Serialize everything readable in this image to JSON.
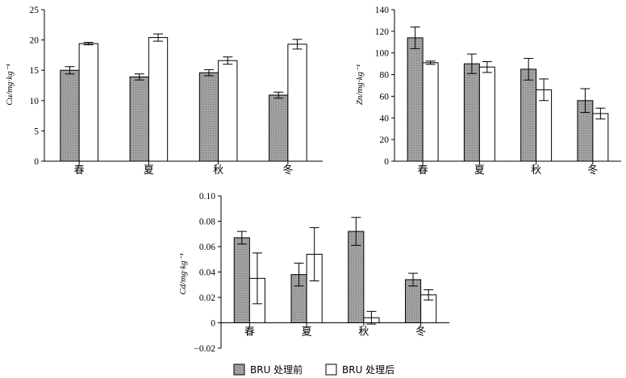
{
  "chart_data": [
    {
      "type": "bar",
      "ylabel": "Cu/mg·kg⁻¹",
      "categories": [
        "春",
        "夏",
        "秋",
        "冬"
      ],
      "ylim": [
        0,
        25
      ],
      "yticks": [
        0,
        5,
        10,
        15,
        20,
        25
      ],
      "series": [
        {
          "name": "BRU 处理前",
          "values": [
            15.0,
            13.9,
            14.6,
            10.9
          ],
          "errors": [
            0.6,
            0.5,
            0.5,
            0.5
          ]
        },
        {
          "name": "BRU 处理后",
          "values": [
            19.4,
            20.4,
            16.6,
            19.3
          ],
          "errors": [
            0.2,
            0.6,
            0.6,
            0.8
          ]
        }
      ]
    },
    {
      "type": "bar",
      "ylabel": "Zn/mg·kg⁻¹",
      "categories": [
        "春",
        "夏",
        "秋",
        "冬"
      ],
      "ylim": [
        0,
        140
      ],
      "yticks": [
        0,
        20,
        40,
        60,
        80,
        100,
        120,
        140
      ],
      "series": [
        {
          "name": "BRU 处理前",
          "values": [
            114,
            90,
            85,
            56
          ],
          "errors": [
            10,
            9,
            10,
            11
          ]
        },
        {
          "name": "BRU 处理后",
          "values": [
            91,
            87,
            66,
            44
          ],
          "errors": [
            1.5,
            5,
            10,
            5
          ]
        }
      ]
    },
    {
      "type": "bar",
      "ylabel": "Cd/mg·kg⁻¹",
      "categories": [
        "春",
        "夏",
        "秋",
        "冬"
      ],
      "ylim": [
        -0.02,
        0.1
      ],
      "yticks": [
        -0.02,
        0,
        0.02,
        0.04,
        0.06,
        0.08,
        0.1
      ],
      "ytick_labels": [
        "−0.02",
        "0",
        "0.02",
        "0.04",
        "0.06",
        "0.08",
        "0.10"
      ],
      "series": [
        {
          "name": "BRU 处理前",
          "values": [
            0.067,
            0.038,
            0.072,
            0.034
          ],
          "errors": [
            0.005,
            0.009,
            0.011,
            0.005
          ]
        },
        {
          "name": "BRU 处理后",
          "values": [
            0.035,
            0.054,
            0.004,
            0.022
          ],
          "errors": [
            0.02,
            0.021,
            0.005,
            0.004
          ]
        }
      ]
    }
  ],
  "legend": {
    "before_label": "BRU 处理前",
    "after_label": "BRU 处理后"
  },
  "colors": {
    "before_fill": "#9a9a9a",
    "after_fill": "#ffffff",
    "stroke": "#000000"
  }
}
